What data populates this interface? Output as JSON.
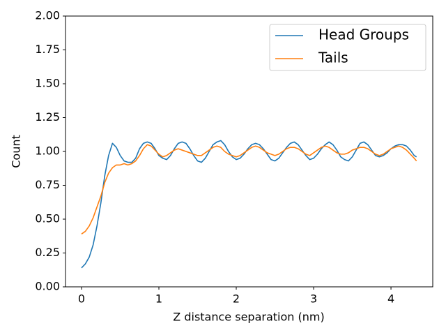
{
  "chart_data": {
    "type": "line",
    "xlabel": "Z distance separation (nm)",
    "ylabel": "Count",
    "x": [
      0,
      0.05,
      0.1,
      0.15,
      0.2,
      0.25,
      0.3,
      0.35,
      0.4,
      0.45,
      0.5,
      0.55,
      0.6,
      0.65,
      0.7,
      0.75,
      0.8,
      0.85,
      0.9,
      0.95,
      1.0,
      1.05,
      1.1,
      1.15,
      1.2,
      1.25,
      1.3,
      1.35,
      1.4,
      1.45,
      1.5,
      1.55,
      1.6,
      1.65,
      1.7,
      1.75,
      1.8,
      1.85,
      1.9,
      1.95,
      2.0,
      2.05,
      2.1,
      2.15,
      2.2,
      2.25,
      2.3,
      2.35,
      2.4,
      2.45,
      2.5,
      2.55,
      2.6,
      2.65,
      2.7,
      2.75,
      2.8,
      2.85,
      2.9,
      2.95,
      3.0,
      3.05,
      3.1,
      3.15,
      3.2,
      3.25,
      3.3,
      3.35,
      3.4,
      3.45,
      3.5,
      3.55,
      3.6,
      3.65,
      3.7,
      3.75,
      3.8,
      3.85,
      3.9,
      3.95,
      4.0,
      4.05,
      4.1,
      4.15,
      4.2,
      4.25,
      4.3,
      4.33
    ],
    "series": [
      {
        "name": "Head Groups",
        "color": "#1f77b4",
        "values": [
          0.14,
          0.17,
          0.22,
          0.31,
          0.45,
          0.62,
          0.82,
          0.97,
          1.06,
          1.03,
          0.97,
          0.93,
          0.92,
          0.92,
          0.95,
          1.02,
          1.06,
          1.07,
          1.06,
          1.02,
          0.97,
          0.95,
          0.94,
          0.97,
          1.02,
          1.06,
          1.07,
          1.06,
          1.02,
          0.97,
          0.93,
          0.92,
          0.95,
          1.0,
          1.05,
          1.07,
          1.08,
          1.05,
          1.0,
          0.96,
          0.94,
          0.95,
          0.98,
          1.02,
          1.05,
          1.06,
          1.05,
          1.02,
          0.98,
          0.94,
          0.93,
          0.95,
          0.99,
          1.03,
          1.06,
          1.07,
          1.05,
          1.01,
          0.97,
          0.94,
          0.95,
          0.98,
          1.02,
          1.05,
          1.07,
          1.05,
          1.01,
          0.96,
          0.94,
          0.93,
          0.96,
          1.01,
          1.06,
          1.07,
          1.05,
          1.01,
          0.97,
          0.96,
          0.97,
          0.99,
          1.02,
          1.04,
          1.05,
          1.05,
          1.04,
          1.01,
          0.97,
          0.96
        ]
      },
      {
        "name": "Tails",
        "color": "#ff7f0e",
        "values": [
          0.39,
          0.41,
          0.45,
          0.51,
          0.59,
          0.67,
          0.77,
          0.84,
          0.88,
          0.9,
          0.9,
          0.91,
          0.9,
          0.91,
          0.93,
          0.97,
          1.02,
          1.05,
          1.04,
          1.01,
          0.98,
          0.96,
          0.97,
          0.99,
          1.01,
          1.02,
          1.01,
          1.0,
          0.99,
          0.98,
          0.97,
          0.97,
          0.99,
          1.01,
          1.03,
          1.04,
          1.03,
          1.0,
          0.98,
          0.97,
          0.96,
          0.97,
          0.99,
          1.01,
          1.03,
          1.04,
          1.03,
          1.01,
          0.99,
          0.98,
          0.97,
          0.98,
          1.0,
          1.02,
          1.03,
          1.03,
          1.02,
          1.0,
          0.98,
          0.97,
          0.99,
          1.01,
          1.03,
          1.04,
          1.03,
          1.01,
          0.99,
          0.98,
          0.98,
          0.99,
          1.01,
          1.02,
          1.03,
          1.03,
          1.02,
          1.0,
          0.98,
          0.97,
          0.98,
          1.0,
          1.02,
          1.03,
          1.04,
          1.03,
          1.01,
          0.98,
          0.95,
          0.93
        ]
      }
    ],
    "xlim": [
      -0.207,
      4.54
    ],
    "ylim": [
      0,
      2
    ],
    "xticks": [
      0,
      1,
      2,
      3,
      4
    ],
    "yticks": [
      {
        "value": 0,
        "label": "0.00"
      },
      {
        "value": 0.25,
        "label": "0.25"
      },
      {
        "value": 0.5,
        "label": "0.50"
      },
      {
        "value": 0.75,
        "label": "0.75"
      },
      {
        "value": 1,
        "label": "1.00"
      },
      {
        "value": 1.25,
        "label": "1.25"
      },
      {
        "value": 1.5,
        "label": "1.50"
      },
      {
        "value": 1.75,
        "label": "1.75"
      },
      {
        "value": 2,
        "label": "2.00"
      }
    ],
    "legend": "upper right",
    "grid": false
  }
}
